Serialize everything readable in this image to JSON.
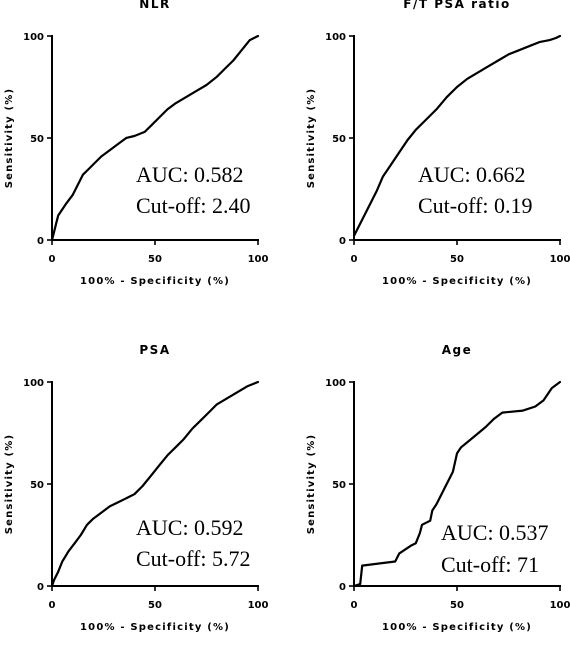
{
  "chart_data": [
    {
      "type": "line",
      "title": "NLR",
      "xlabel": "100% - Specificity (%)",
      "ylabel": "Sensitivity (%)",
      "xlim": [
        0,
        100
      ],
      "ylim": [
        0,
        100
      ],
      "xticks": [
        "0",
        "50",
        "100"
      ],
      "yticks": [
        "0",
        "50",
        "100"
      ],
      "annotations": [
        "AUC: 0.582",
        "Cut-off: 2.40"
      ],
      "series": [
        {
          "x": [
            0,
            1,
            2,
            3,
            5,
            7,
            10,
            13,
            15,
            18,
            20,
            24,
            28,
            32,
            36,
            40,
            45,
            48,
            52,
            56,
            60,
            65,
            70,
            75,
            80,
            84,
            88,
            92,
            96,
            100
          ],
          "y": [
            0,
            4,
            8,
            12,
            15,
            18,
            22,
            28,
            32,
            35,
            37,
            41,
            44,
            47,
            50,
            51,
            53,
            56,
            60,
            64,
            67,
            70,
            73,
            76,
            80,
            84,
            88,
            93,
            98,
            100
          ]
        }
      ]
    },
    {
      "type": "line",
      "title": "F/T PSA ratio",
      "xlabel": "100% - Specificity (%)",
      "ylabel": "Sensitivity (%)",
      "xlim": [
        0,
        100
      ],
      "ylim": [
        0,
        100
      ],
      "xticks": [
        "0",
        "50",
        "100"
      ],
      "yticks": [
        "0",
        "50",
        "100"
      ],
      "annotations": [
        "AUC: 0.662",
        "Cut-off: 0.19"
      ],
      "series": [
        {
          "x": [
            0,
            2,
            5,
            8,
            11,
            14,
            18,
            22,
            26,
            30,
            35,
            40,
            45,
            50,
            55,
            60,
            65,
            70,
            75,
            80,
            85,
            90,
            95,
            98,
            100
          ],
          "y": [
            2,
            6,
            12,
            18,
            24,
            31,
            37,
            43,
            49,
            54,
            59,
            64,
            70,
            75,
            79,
            82,
            85,
            88,
            91,
            93,
            95,
            97,
            98,
            99,
            100
          ]
        }
      ]
    },
    {
      "type": "line",
      "title": "PSA",
      "xlabel": "100% - Specificity (%)",
      "ylabel": "Sensitivity (%)",
      "xlim": [
        0,
        100
      ],
      "ylim": [
        0,
        100
      ],
      "xticks": [
        "0",
        "50",
        "100"
      ],
      "yticks": [
        "0",
        "50",
        "100"
      ],
      "annotations": [
        "AUC: 0.592",
        "Cut-off: 5.72"
      ],
      "series": [
        {
          "x": [
            0,
            1,
            3,
            5,
            8,
            11,
            14,
            17,
            20,
            24,
            28,
            32,
            36,
            40,
            44,
            48,
            52,
            56,
            60,
            64,
            68,
            72,
            76,
            80,
            85,
            90,
            95,
            100
          ],
          "y": [
            0,
            3,
            7,
            12,
            17,
            21,
            25,
            30,
            33,
            36,
            39,
            41,
            43,
            45,
            49,
            54,
            59,
            64,
            68,
            72,
            77,
            81,
            85,
            89,
            92,
            95,
            98,
            100
          ]
        }
      ]
    },
    {
      "type": "line",
      "title": "Age",
      "xlabel": "100% - Specificity (%)",
      "ylabel": "Sensitivity (%)",
      "xlim": [
        0,
        100
      ],
      "ylim": [
        0,
        100
      ],
      "xticks": [
        "0",
        "50",
        "100"
      ],
      "yticks": [
        "0",
        "50",
        "100"
      ],
      "annotations": [
        "AUC: 0.537",
        "Cut-off: 71"
      ],
      "series": [
        {
          "x": [
            0,
            3,
            4,
            20,
            22,
            28,
            30,
            32,
            33,
            37,
            38,
            40,
            44,
            48,
            50,
            52,
            58,
            64,
            68,
            72,
            82,
            88,
            92,
            96,
            100
          ],
          "y": [
            0,
            1,
            10,
            12,
            16,
            20,
            21,
            26,
            30,
            32,
            37,
            40,
            48,
            56,
            65,
            68,
            73,
            78,
            82,
            85,
            86,
            88,
            91,
            97,
            100
          ]
        }
      ]
    }
  ]
}
